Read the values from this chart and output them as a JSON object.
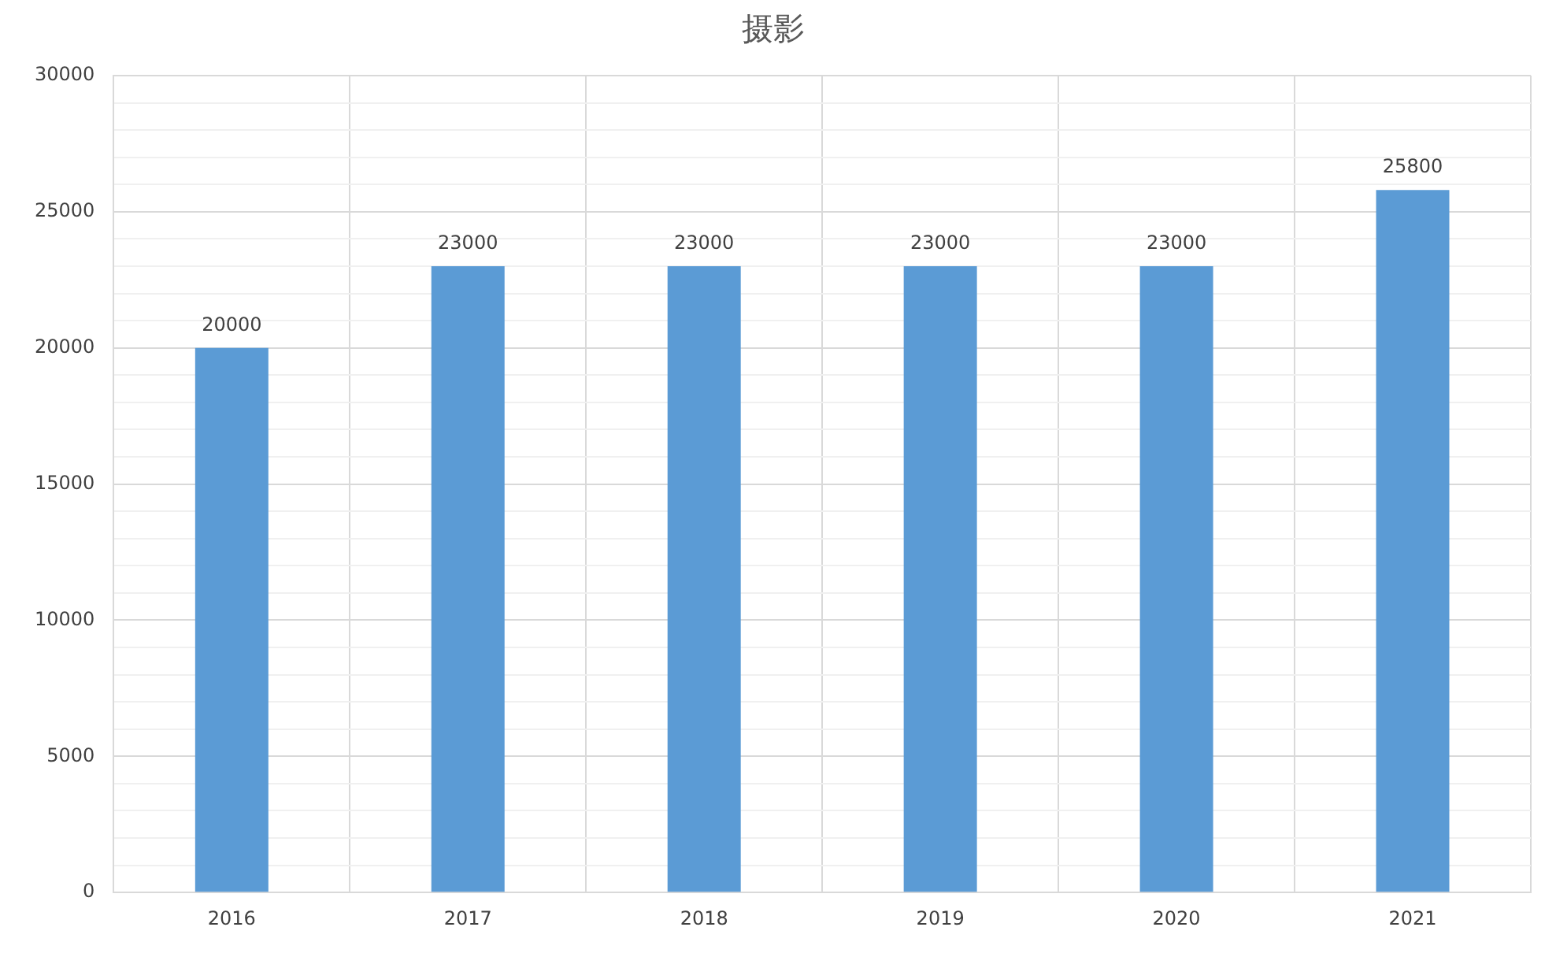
{
  "chart_data": {
    "type": "bar",
    "title": "摄影",
    "categories": [
      "2016",
      "2017",
      "2018",
      "2019",
      "2020",
      "2021"
    ],
    "values": [
      20000,
      23000,
      23000,
      23000,
      23000,
      25800
    ],
    "color": "#5b9bd5",
    "ylim": [
      0,
      30000
    ],
    "yticks": [
      0,
      {
        "value": 1000,
        "label": null
      },
      {
        "value": 2000,
        "label": null
      },
      {
        "value": 3000,
        "label": null
      },
      {
        "value": 4000,
        "label": null
      },
      5000,
      {
        "value": 6000,
        "label": null
      },
      {
        "value": 7000,
        "label": null
      },
      {
        "value": 8000,
        "label": null
      },
      {
        "value": 9000,
        "label": null
      },
      10000,
      {
        "value": 11000,
        "label": null
      },
      {
        "value": 12000,
        "label": null
      },
      {
        "value": 13000,
        "label": null
      },
      {
        "value": 14000,
        "label": null
      },
      15000,
      {
        "value": 16000,
        "label": null
      },
      {
        "value": 17000,
        "label": null
      },
      {
        "value": 18000,
        "label": null
      },
      {
        "value": 19000,
        "label": null
      },
      20000,
      {
        "value": 21000,
        "label": null
      },
      {
        "value": 22000,
        "label": null
      },
      {
        "value": 23000,
        "label": null
      },
      {
        "value": 24000,
        "label": null
      },
      25000,
      {
        "value": 26000,
        "label": null
      },
      {
        "value": 27000,
        "label": null
      },
      {
        "value": 28000,
        "label": null
      },
      {
        "value": 29000,
        "label": null
      },
      30000
    ],
    "grid": true,
    "data_labels": true
  }
}
